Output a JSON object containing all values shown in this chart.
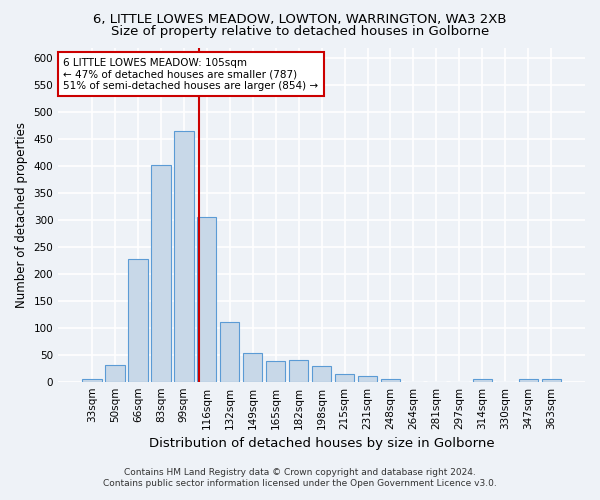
{
  "title1": "6, LITTLE LOWES MEADOW, LOWTON, WARRINGTON, WA3 2XB",
  "title2": "Size of property relative to detached houses in Golborne",
  "xlabel": "Distribution of detached houses by size in Golborne",
  "ylabel": "Number of detached properties",
  "categories": [
    "33sqm",
    "50sqm",
    "66sqm",
    "83sqm",
    "99sqm",
    "116sqm",
    "132sqm",
    "149sqm",
    "165sqm",
    "182sqm",
    "198sqm",
    "215sqm",
    "231sqm",
    "248sqm",
    "264sqm",
    "281sqm",
    "297sqm",
    "314sqm",
    "330sqm",
    "347sqm",
    "363sqm"
  ],
  "values": [
    5,
    31,
    227,
    402,
    466,
    306,
    111,
    54,
    39,
    40,
    29,
    14,
    10,
    5,
    0,
    0,
    0,
    5,
    0,
    5,
    5
  ],
  "bar_color": "#c8d8e8",
  "bar_edge_color": "#5b9bd5",
  "vline_x": 4.68,
  "vline_color": "#cc0000",
  "annotation_text": "6 LITTLE LOWES MEADOW: 105sqm\n← 47% of detached houses are smaller (787)\n51% of semi-detached houses are larger (854) →",
  "annotation_box_color": "white",
  "annotation_box_edge_color": "#cc0000",
  "ylim": [
    0,
    620
  ],
  "yticks": [
    0,
    50,
    100,
    150,
    200,
    250,
    300,
    350,
    400,
    450,
    500,
    550,
    600
  ],
  "footnote1": "Contains HM Land Registry data © Crown copyright and database right 2024.",
  "footnote2": "Contains public sector information licensed under the Open Government Licence v3.0.",
  "background_color": "#eef2f7",
  "grid_color": "white",
  "title1_fontsize": 9.5,
  "title2_fontsize": 9.5,
  "xlabel_fontsize": 9.5,
  "ylabel_fontsize": 8.5,
  "tick_fontsize": 7.5,
  "annotation_fontsize": 7.5,
  "footnote_fontsize": 6.5
}
